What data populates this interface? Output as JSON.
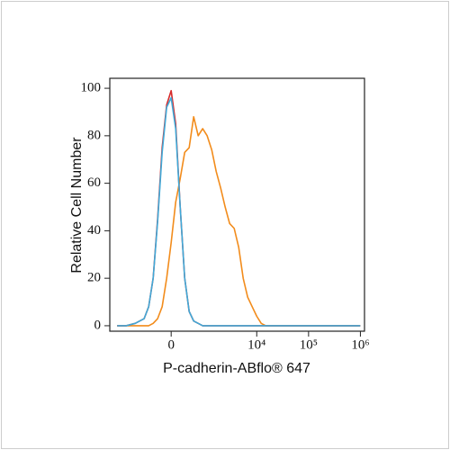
{
  "chart_data": {
    "type": "line",
    "xlabel": "P-cadherin-ABflo® 647",
    "ylabel": "Relative Cell Number",
    "xscale": "biexponential",
    "x": [
      -2440,
      -1620,
      -1060,
      -675,
      -525,
      -397,
      -285,
      -184,
      -90,
      0,
      90,
      184,
      285,
      397,
      525,
      675,
      851,
      1060,
      1320,
      1620,
      1990,
      2440,
      2990,
      3660,
      4480,
      5470,
      6690,
      8170,
      10000,
      12200,
      14900,
      18200,
      27200,
      40500,
      90200,
      299000,
      994000
    ],
    "series": [
      {
        "name": "orange",
        "color": "#f28c1c",
        "values": [
          0,
          0,
          0,
          0,
          0,
          1,
          3,
          8,
          20,
          35,
          52,
          62,
          73,
          75,
          88,
          80,
          83,
          80,
          74,
          65,
          58,
          50,
          43,
          41,
          33,
          20,
          12,
          8,
          4,
          1,
          0,
          0,
          0,
          0,
          0,
          0,
          0
        ]
      },
      {
        "name": "red",
        "color": "#d62b2b",
        "values": [
          0,
          0,
          1,
          3,
          8,
          20,
          45,
          75,
          93,
          99,
          85,
          50,
          20,
          6,
          2,
          1,
          0,
          0,
          0,
          0,
          0,
          0,
          0,
          0,
          0,
          0,
          0,
          0,
          0,
          0,
          0,
          0,
          0,
          0,
          0,
          0,
          0
        ]
      },
      {
        "name": "blue",
        "color": "#3fa9d8",
        "values": [
          0,
          0,
          1,
          3,
          8,
          20,
          44,
          73,
          92,
          96,
          83,
          50,
          20,
          6,
          2,
          1,
          0,
          0,
          0,
          0,
          0,
          0,
          0,
          0,
          0,
          0,
          0,
          0,
          0,
          0,
          0,
          0,
          0,
          0,
          0,
          0,
          0
        ]
      }
    ],
    "xlim": [
      -3400,
      1200000
    ],
    "xticks": [
      0,
      {
        "value": 10000,
        "label": "10⁴"
      },
      {
        "value": 100000,
        "label": "10⁵"
      },
      {
        "value": 1000000,
        "label": "10⁶"
      }
    ],
    "ylim": [
      -2.3,
      104.2
    ],
    "yticks": [
      0,
      20,
      40,
      60,
      80,
      100
    ]
  }
}
